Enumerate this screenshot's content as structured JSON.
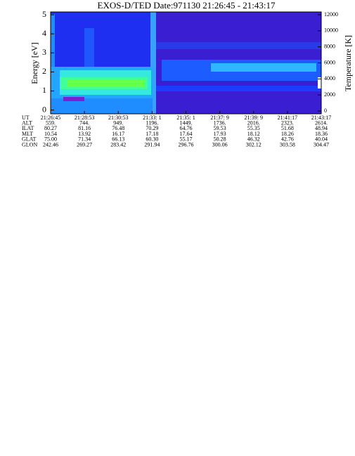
{
  "chart_data": {
    "type": "spectrogram",
    "title": "EXOS-D/TED   Date:971130   21:26:45 - 21:43:17",
    "ylabel": "Energy [eV]",
    "y2label": "Temperature [K]",
    "ylim": [
      -0.2,
      5.15
    ],
    "yticks": [
      0,
      1,
      2,
      3,
      4,
      5
    ],
    "y2lim": [
      -350,
      12350
    ],
    "y2ticks": [
      0,
      2000,
      4000,
      6000,
      8000,
      10000,
      12000
    ],
    "ephemeris": {
      "labels": [
        "UT",
        "ALT",
        "ILAT",
        "MLT",
        "GLAT",
        "GLON"
      ],
      "rows": [
        [
          "21:26:45",
          "21:28:53",
          "21:30:53",
          "21:33: 1",
          "21:35: 1",
          "21:37: 9",
          "21:39: 9",
          "21:41:17",
          "21:43:17"
        ],
        [
          "559.",
          "744.",
          "949.",
          "1196.",
          "1449.",
          "1736.",
          "2016.",
          "2323.",
          "2614."
        ],
        [
          "80.27",
          "81.16",
          "76.48",
          "70.29",
          "64.76",
          "59.53",
          "55.35",
          "51.68",
          "48.94"
        ],
        [
          "10.54",
          "13.92",
          "16.17",
          "17.18",
          "17.64",
          "17.93",
          "18.12",
          "18.26",
          "18.36"
        ],
        [
          "75.00",
          "71.34",
          "66.13",
          "60.30",
          "55.17",
          "50.28",
          "46.32",
          "42.76",
          "40.04"
        ],
        [
          "242.46",
          "269.27",
          "283.42",
          "291.94",
          "296.76",
          "300.06",
          "302.12",
          "303.58",
          "304.47"
        ]
      ]
    }
  }
}
